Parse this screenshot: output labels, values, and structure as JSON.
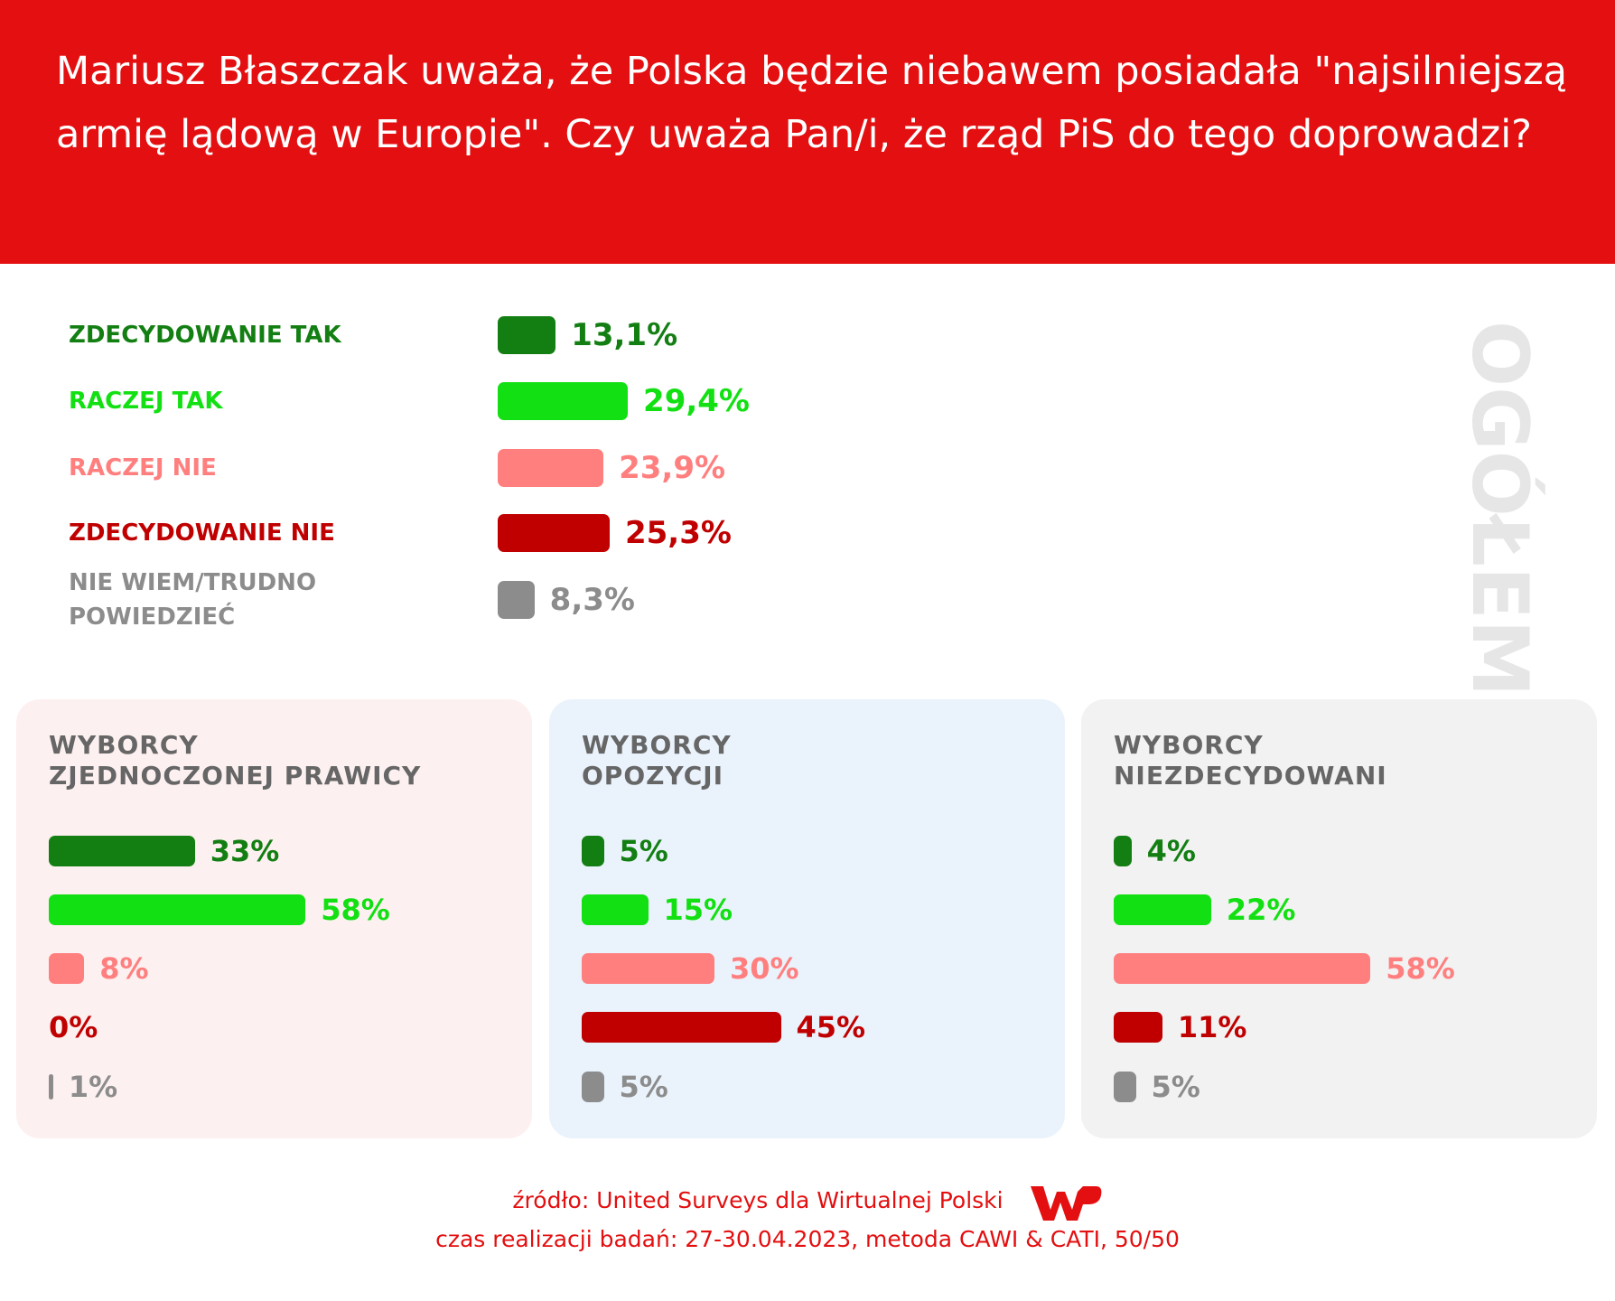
{
  "title": "Mariusz Błaszczak uważa, że Polska będzie niebawem posiadała \"najsilniejszą armię lądową w Europie\". Czy uważa Pan/i, że rząd PiS do tego doprowadzi?",
  "chart_data": [
    {
      "type": "bar",
      "title": "OGÓŁEM",
      "categories": [
        "ZDECYDOWANIE TAK",
        "RACZEJ TAK",
        "RACZEJ NIE",
        "ZDECYDOWANIE NIE",
        "NIE WIEM/TRUDNO\nPOWIEDZIEĆ"
      ],
      "values": [
        13.1,
        29.4,
        23.9,
        25.3,
        8.3
      ],
      "value_labels": [
        "13,1%",
        "29,4%",
        "23,9%",
        "25,3%",
        "8,3%"
      ],
      "colors": [
        "#137f13",
        "#12e012",
        "#ff7f7f",
        "#c00000",
        "#8c8c8c"
      ]
    },
    {
      "type": "bar",
      "title": "WYBORCY\nZJEDNOCZONEJ PRAWICY",
      "values": [
        33,
        58,
        8,
        0,
        1
      ],
      "value_labels": [
        "33%",
        "58%",
        "8%",
        "0%",
        "1%"
      ],
      "colors": [
        "#137f13",
        "#12e012",
        "#ff7f7f",
        "#c00000",
        "#8c8c8c"
      ]
    },
    {
      "type": "bar",
      "title": "WYBORCY\nOPOZYCJI",
      "values": [
        5,
        15,
        30,
        45,
        5
      ],
      "value_labels": [
        "5%",
        "15%",
        "30%",
        "45%",
        "5%"
      ],
      "colors": [
        "#137f13",
        "#12e012",
        "#ff7f7f",
        "#c00000",
        "#8c8c8c"
      ]
    },
    {
      "type": "bar",
      "title": "WYBORCY\nNIEZDECYDOWANI",
      "values": [
        4,
        22,
        58,
        11,
        5
      ],
      "value_labels": [
        "4%",
        "22%",
        "58%",
        "11%",
        "5%"
      ],
      "colors": [
        "#137f13",
        "#12e012",
        "#ff7f7f",
        "#c00000",
        "#8c8c8c"
      ]
    }
  ],
  "source": "źródło: United Surveys dla Wirtualnej Polski",
  "note": "czas realizacji badań: 27-30.04.2023, metoda CAWI & CATI, 50/50"
}
